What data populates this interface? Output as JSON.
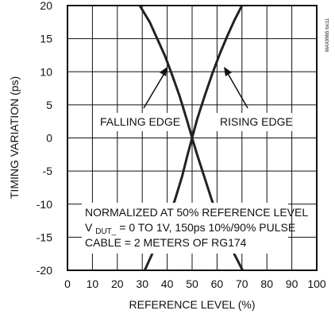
{
  "chart_data": {
    "type": "line",
    "xlabel": "REFERENCE LEVEL (%)",
    "ylabel": "TIMING VARIATION (ps)",
    "xlim": [
      0,
      100
    ],
    "ylim": [
      -20,
      20
    ],
    "x_ticks": [
      "0",
      "10",
      "20",
      "30",
      "40",
      "50",
      "60",
      "70",
      "80",
      "90",
      "100"
    ],
    "y_ticks": [
      "20",
      "15",
      "10",
      "5",
      "0",
      "-5",
      "-10",
      "-15",
      "-20"
    ],
    "grid": true,
    "series": [
      {
        "name": "FALLING EDGE",
        "x": [
          29,
          33,
          36,
          39,
          42,
          45,
          48,
          50,
          52,
          55,
          58,
          61,
          64,
          67,
          70,
          73
        ],
        "y": [
          20,
          17.5,
          15,
          12.5,
          9.5,
          6.3,
          2.6,
          0,
          -2.5,
          -6,
          -9.5,
          -12.5,
          -15.2,
          -17.6,
          -19.8,
          -22
        ]
      },
      {
        "name": "RISING EDGE",
        "x": [
          28,
          31,
          34,
          37,
          40,
          43,
          46,
          48,
          50,
          52,
          55,
          58,
          61,
          64,
          67,
          70
        ],
        "y": [
          -22,
          -20,
          -17.5,
          -15,
          -12.5,
          -9.5,
          -5.8,
          -2.8,
          0,
          2.8,
          6.3,
          9.6,
          12.6,
          15.3,
          17.8,
          20
        ]
      }
    ],
    "annotations": {
      "falling_edge": "FALLING EDGE",
      "rising_edge": "RISING EDGE",
      "note_line1": "NORMALIZED AT 50% REFERENCE LEVEL",
      "note_line2_prefix": "V",
      "note_line2_sub": "DUT_",
      "note_line2_suffix": " = 0 TO 1V, 150ps 10%/90% PULSE",
      "note_line3": "CABLE = 2 METERS OF RG174",
      "figure_id": "MAX9965 toc11"
    }
  }
}
